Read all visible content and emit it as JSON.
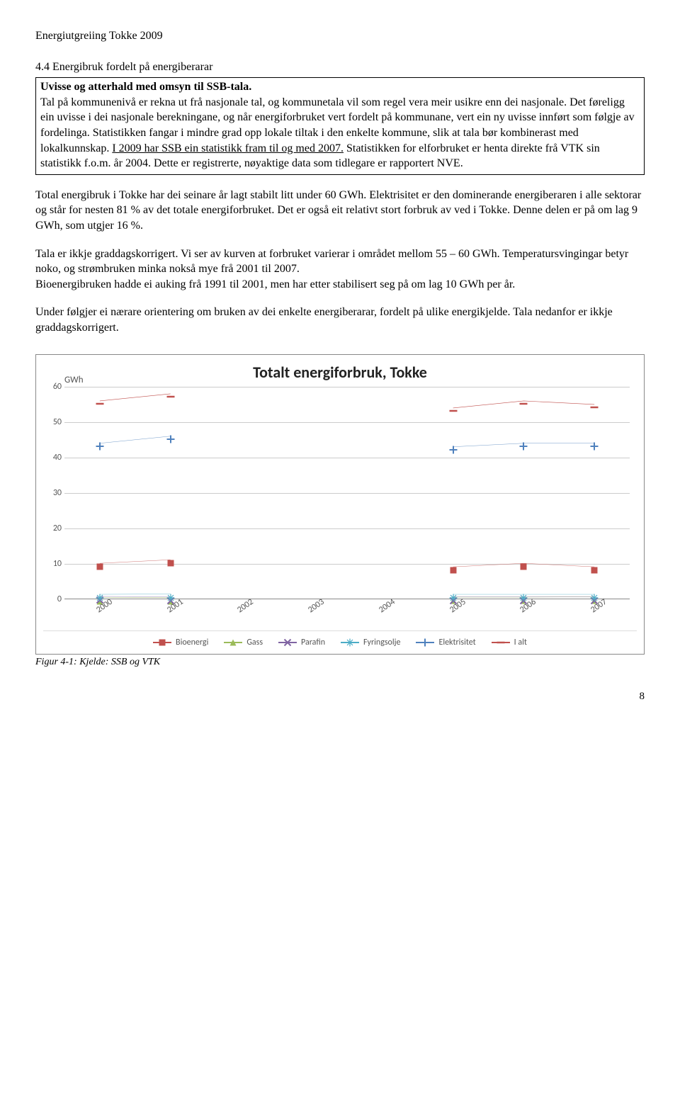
{
  "header": "Energiutgreiing Tokke 2009",
  "section_title": "4.4 Energibruk fordelt på energiberarar",
  "box": {
    "title": "Uvisse og atterhald med omsyn til SSB-tala.",
    "text_a": "Tal på kommunenivå er rekna ut frå nasjonale tal, og kommunetala vil som regel vera meir usikre enn dei nasjonale. Det føreligg ein uvisse i dei nasjonale berekningane, og når energiforbruket vert fordelt på kommunane, vert ein ny uvisse innført som følgje av fordelinga. Statistikken fangar i mindre grad opp lokale tiltak i den enkelte kommune, slik at tala bør kombinerast med lokalkunnskap. ",
    "underlined": "I 2009 har SSB ein statistikk fram til og med 2007.",
    "text_b": " Statistikken for elforbruket er henta direkte frå VTK sin statistikk f.o.m. år 2004. Dette er registrerte, nøyaktige data som tidlegare er rapportert NVE."
  },
  "para1": "Total energibruk i Tokke har dei seinare år lagt stabilt litt under 60 GWh. Elektrisitet er den dominerande energiberaren i alle sektorar og står for nesten 81 % av det totale energiforbruket. Det er også eit relativt stort forbruk av ved i Tokke. Denne delen er på om lag 9 GWh, som utgjer 16 %.",
  "para2": "Tala er ikkje graddagskorrigert. Vi ser av kurven at forbruket varierar i området mellom 55 – 60 GWh. Temperatursvingingar betyr noko, og strømbruken minka nokså mye frå 2001 til 2007.",
  "para3": "Bioenergibruken hadde ei auking frå 1991 til 2001, men har etter stabilisert seg på om lag 10 GWh per år.",
  "para4": "Under følgjer ei nærare orientering om bruken av dei enkelte energiberarar, fordelt på ulike energikjelde. Tala nedanfor er ikkje graddagskorrigert.",
  "chart": {
    "title": "Totalt energiforbruk, Tokke",
    "ylabel": "GWh",
    "ylim": [
      0,
      60
    ],
    "ytick_step": 10,
    "yticks": [
      0,
      10,
      20,
      30,
      40,
      50,
      60
    ],
    "categories": [
      "2000",
      "2001",
      "2002",
      "2003",
      "2004",
      "2005",
      "2006",
      "2007"
    ],
    "grid_color": "#cccccc",
    "series": [
      {
        "name": "Bioenergi",
        "color": "#c0504d",
        "marker": "square",
        "values": [
          10,
          11,
          null,
          null,
          null,
          9,
          10,
          9
        ]
      },
      {
        "name": "Gass",
        "color": "#9bbb59",
        "marker": "triangle",
        "values": [
          0.3,
          0.3,
          null,
          null,
          null,
          0.4,
          0.4,
          0.5
        ]
      },
      {
        "name": "Parafin",
        "color": "#8064a2",
        "marker": "x",
        "values": [
          0.6,
          0.5,
          null,
          null,
          null,
          0.5,
          0.5,
          0.5
        ]
      },
      {
        "name": "Fyringsolje",
        "color": "#4bacc6",
        "marker": "star",
        "values": [
          1.2,
          1.3,
          null,
          null,
          null,
          1.2,
          1.2,
          1.2
        ]
      },
      {
        "name": "Elektrisitet",
        "color": "#4f81bd",
        "marker": "plus",
        "values": [
          44,
          46,
          null,
          null,
          null,
          43,
          44,
          44
        ]
      },
      {
        "name": "I alt",
        "color": "#c0504d",
        "marker": "dash",
        "values": [
          56,
          58,
          null,
          null,
          null,
          54,
          56,
          55
        ]
      }
    ]
  },
  "caption": "Figur 4-1: Kjelde: SSB og VTK",
  "pagenum": "8"
}
